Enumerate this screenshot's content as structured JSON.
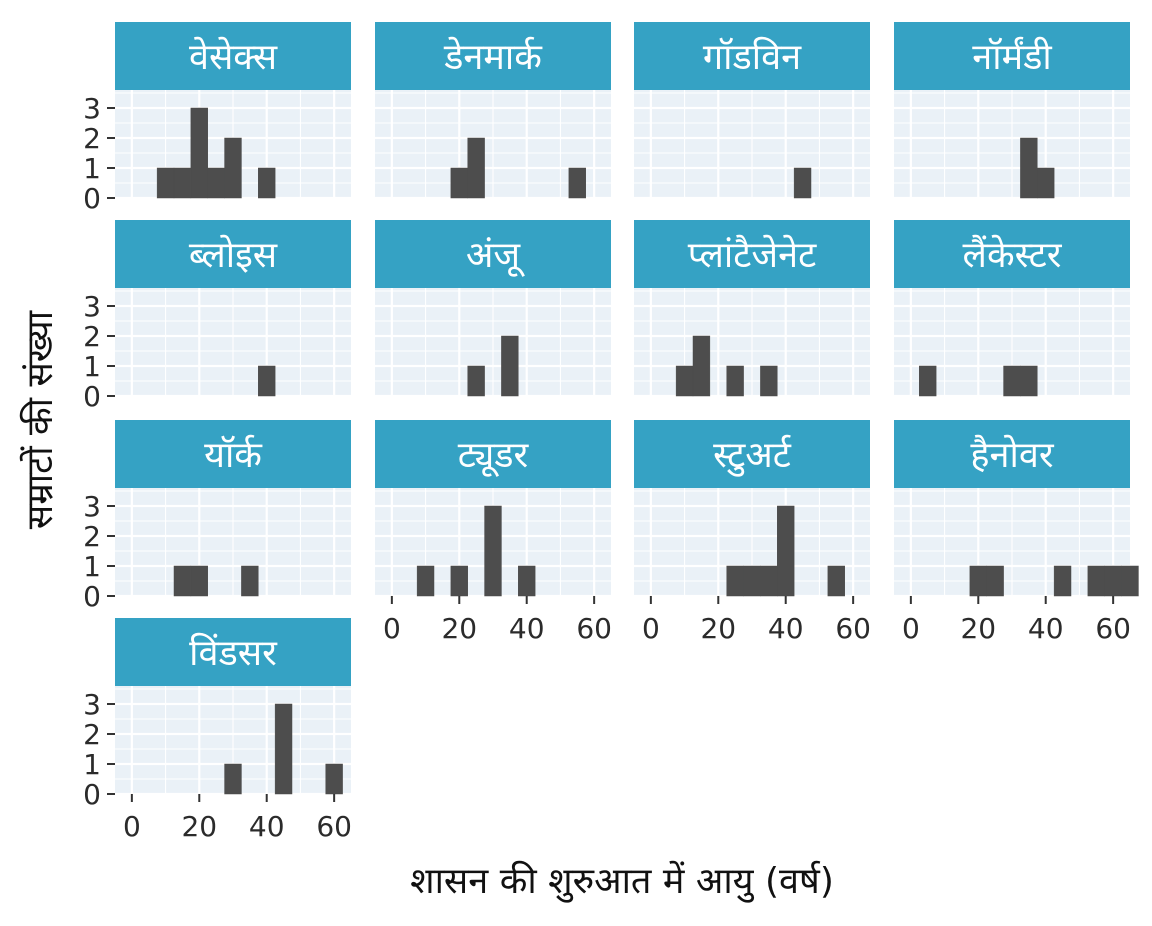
{
  "chart_data": {
    "type": "bar",
    "xlabel": "शासन की शुरुआत में आयु (वर्ष)",
    "ylabel": "सम्राटों की संख्या",
    "bin_width": 5,
    "xlim": [
      -5,
      65
    ],
    "ylim": [
      0,
      3
    ],
    "x_ticks": [
      0,
      20,
      40,
      60
    ],
    "y_ticks": [
      0,
      1,
      2,
      3
    ],
    "grid": true,
    "facets": [
      {
        "name": "वेसेक्स",
        "bins": [
          {
            "x": 10,
            "count": 1
          },
          {
            "x": 15,
            "count": 1
          },
          {
            "x": 20,
            "count": 3
          },
          {
            "x": 25,
            "count": 1
          },
          {
            "x": 30,
            "count": 2
          },
          {
            "x": 40,
            "count": 1
          }
        ]
      },
      {
        "name": "डेनमार्क",
        "bins": [
          {
            "x": 20,
            "count": 1
          },
          {
            "x": 25,
            "count": 2
          },
          {
            "x": 55,
            "count": 1
          }
        ]
      },
      {
        "name": "गॉडविन",
        "bins": [
          {
            "x": 45,
            "count": 1
          }
        ]
      },
      {
        "name": "नॉर्मंडी",
        "bins": [
          {
            "x": 35,
            "count": 2
          },
          {
            "x": 40,
            "count": 1
          }
        ]
      },
      {
        "name": "ब्लोइस",
        "bins": [
          {
            "x": 40,
            "count": 1
          }
        ]
      },
      {
        "name": "अंजू",
        "bins": [
          {
            "x": 25,
            "count": 1
          },
          {
            "x": 35,
            "count": 2
          }
        ]
      },
      {
        "name": "प्लांटैजेनेट",
        "bins": [
          {
            "x": 10,
            "count": 1
          },
          {
            "x": 15,
            "count": 2
          },
          {
            "x": 25,
            "count": 1
          },
          {
            "x": 35,
            "count": 1
          }
        ]
      },
      {
        "name": "लैंकेस्टर",
        "bins": [
          {
            "x": 5,
            "count": 1
          },
          {
            "x": 30,
            "count": 1
          },
          {
            "x": 35,
            "count": 1
          }
        ]
      },
      {
        "name": "यॉर्क",
        "bins": [
          {
            "x": 15,
            "count": 1
          },
          {
            "x": 20,
            "count": 1
          },
          {
            "x": 35,
            "count": 1
          }
        ]
      },
      {
        "name": "ट्यूडर",
        "bins": [
          {
            "x": 10,
            "count": 1
          },
          {
            "x": 20,
            "count": 1
          },
          {
            "x": 30,
            "count": 3
          },
          {
            "x": 40,
            "count": 1
          }
        ]
      },
      {
        "name": "स्टुअर्ट",
        "bins": [
          {
            "x": 25,
            "count": 1
          },
          {
            "x": 30,
            "count": 1
          },
          {
            "x": 35,
            "count": 1
          },
          {
            "x": 40,
            "count": 3
          },
          {
            "x": 55,
            "count": 1
          }
        ]
      },
      {
        "name": "हैनोवर",
        "bins": [
          {
            "x": 20,
            "count": 1
          },
          {
            "x": 25,
            "count": 1
          },
          {
            "x": 45,
            "count": 1
          },
          {
            "x": 55,
            "count": 1
          },
          {
            "x": 60,
            "count": 1
          },
          {
            "x": 65,
            "count": 1
          }
        ]
      },
      {
        "name": "विंडसर",
        "bins": [
          {
            "x": 30,
            "count": 1
          },
          {
            "x": 45,
            "count": 3
          },
          {
            "x": 60,
            "count": 1
          }
        ]
      }
    ]
  }
}
